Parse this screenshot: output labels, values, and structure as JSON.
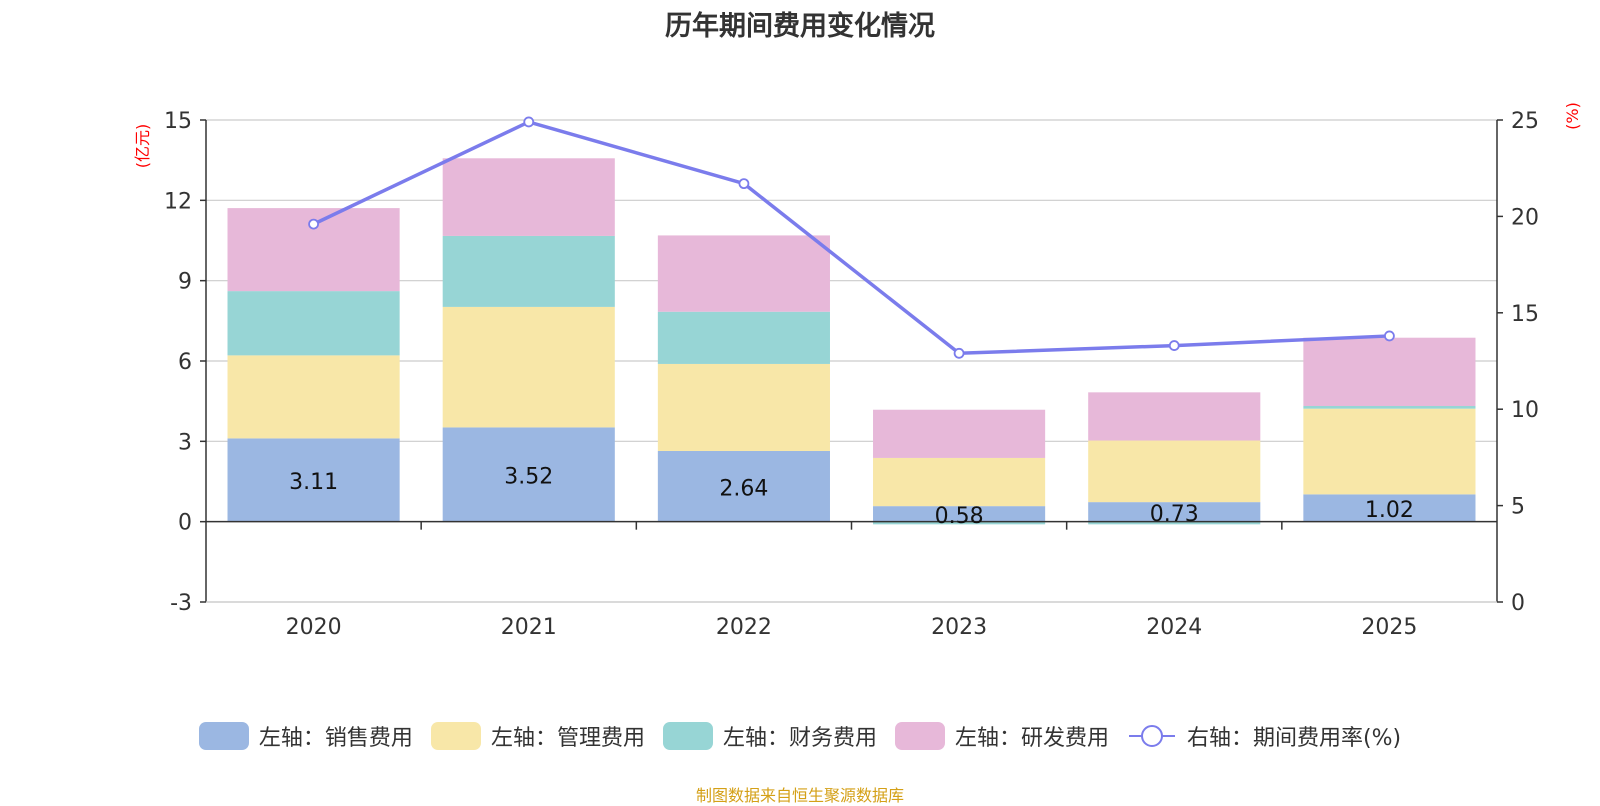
{
  "title": "历年期间费用变化情况",
  "source": "制图数据来自恒生聚源数据库",
  "colors": {
    "sales": "#9bb7e2",
    "admin": "#f8e7a8",
    "finance": "#97d5d5",
    "rnd": "#e7b8d9",
    "rate": "#7b7cec",
    "unit": "#ff0000",
    "grid": "#cccccc",
    "axis": "#333333"
  },
  "chart_data": {
    "type": "bar",
    "stacked": true,
    "categories": [
      "2020",
      "2021",
      "2022",
      "2023",
      "2024",
      "2025"
    ],
    "series": [
      {
        "key": "sales",
        "name": "左轴：销售费用",
        "axis": "left",
        "values": [
          3.11,
          3.52,
          2.64,
          0.58,
          0.73,
          1.02
        ],
        "labels": [
          "3.11",
          "3.52",
          "2.64",
          "0.58",
          "0.73",
          "1.02"
        ]
      },
      {
        "key": "admin",
        "name": "左轴：管理费用",
        "axis": "left",
        "values": [
          3.1,
          4.5,
          3.25,
          1.8,
          2.3,
          3.2
        ]
      },
      {
        "key": "finance",
        "name": "左轴：财务费用",
        "axis": "left",
        "values": [
          2.4,
          2.65,
          1.95,
          -0.1,
          -0.1,
          0.1
        ]
      },
      {
        "key": "rnd",
        "name": "左轴：研发费用",
        "axis": "left",
        "values": [
          3.1,
          2.9,
          2.85,
          1.8,
          1.8,
          2.55
        ]
      },
      {
        "key": "rate",
        "name": "右轴：期间费用率(%)",
        "axis": "right",
        "type": "line",
        "values": [
          19.6,
          24.9,
          21.7,
          12.9,
          13.3,
          13.8
        ]
      }
    ],
    "yAxisLeft": {
      "label": "(亿元)",
      "min": -3,
      "max": 15,
      "ticks": [
        -3,
        0,
        3,
        6,
        9,
        12,
        15
      ]
    },
    "yAxisRight": {
      "label": "(%)",
      "min": 0,
      "max": 25,
      "ticks": [
        0,
        5,
        10,
        15,
        20,
        25
      ]
    },
    "grid": true,
    "legend_position": "bottom"
  }
}
